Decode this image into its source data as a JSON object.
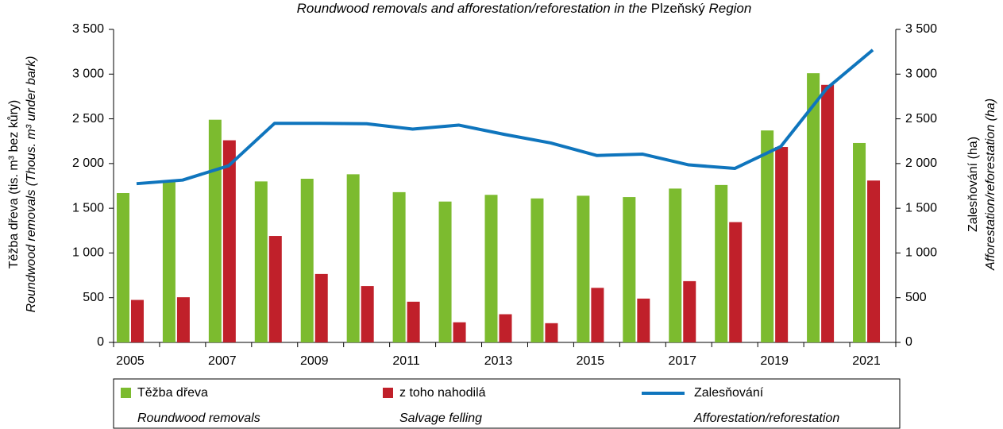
{
  "chart_data": {
    "type": "bar_line",
    "title": [
      "Roundwood removals and afforestation/reforestation in the",
      "Plzeňský",
      "Region"
    ],
    "y_label": [
      "Těžba dřeva (tis. m³ bez kůry)",
      "Roundwood removals (Thous. m³ under bark)"
    ],
    "y2_label": [
      "Zalesňování (ha)",
      "Afforestation/reforestation (ha)"
    ],
    "categories": [
      "2005",
      null,
      "2007",
      null,
      "2009",
      null,
      "2011",
      null,
      "2013",
      null,
      "2015",
      null,
      "2017",
      null,
      "2019",
      null,
      "2021"
    ],
    "series": [
      {
        "name": "Těžba dřeva",
        "name_en": "Roundwood removals",
        "type": "bar",
        "color": "#7cbb2f",
        "values": [
          1670,
          1800,
          2490,
          1800,
          1830,
          1880,
          1680,
          1575,
          1650,
          1610,
          1640,
          1625,
          1720,
          1760,
          2370,
          3010,
          2230
        ]
      },
      {
        "name": "z toho nahodilá",
        "name_en": "Salvage felling",
        "type": "bar",
        "color": "#c0202a",
        "values": [
          475,
          505,
          2260,
          1190,
          765,
          630,
          455,
          225,
          315,
          215,
          610,
          490,
          685,
          1345,
          2185,
          2880,
          1810
        ]
      },
      {
        "name": "Zalesňování",
        "name_en": "Afforestation/reforestation",
        "type": "line",
        "axis": "y2",
        "color": "#0f75bd",
        "values": [
          1775,
          1815,
          1975,
          2450,
          2450,
          2445,
          2385,
          2430,
          2325,
          2230,
          2090,
          2105,
          1985,
          1945,
          2190,
          2840,
          3270
        ]
      }
    ],
    "ylim": [
      0,
      3500
    ],
    "yticks": [
      0,
      500,
      {
        "value": 1000,
        "label": "1 000"
      },
      {
        "value": 1500,
        "label": "1 500"
      },
      {
        "value": 2000,
        "label": "2 000"
      },
      {
        "value": 2500,
        "label": "2 500"
      },
      {
        "value": 3000,
        "label": "3 000"
      },
      {
        "value": 3500,
        "label": "3 500"
      }
    ],
    "y2lim": [
      0,
      3500
    ],
    "y2ticks": [
      0,
      500,
      {
        "value": 1000,
        "label": "1 000"
      },
      {
        "value": 1500,
        "label": "1 500"
      },
      {
        "value": 2000,
        "label": "2 000"
      },
      {
        "value": 2500,
        "label": "2 500"
      },
      {
        "value": 3000,
        "label": "3 000"
      },
      {
        "value": 3500,
        "label": "3 500"
      }
    ],
    "legend": "bottom"
  }
}
